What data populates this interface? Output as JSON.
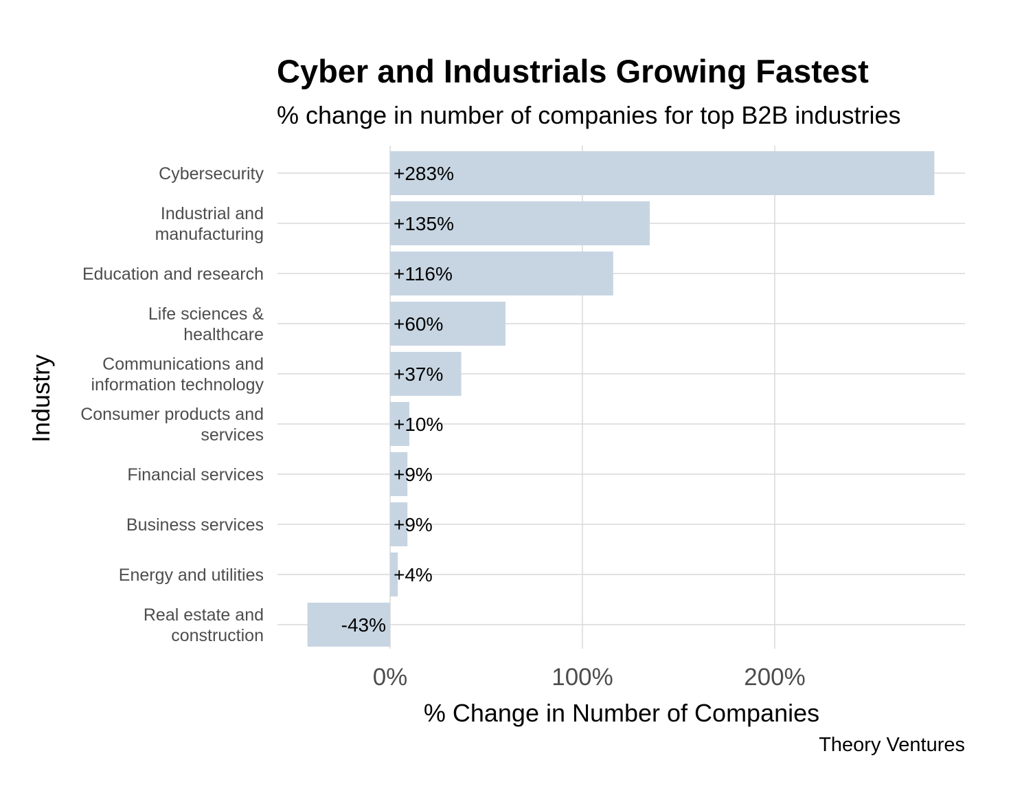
{
  "chart_data": {
    "type": "bar",
    "orientation": "horizontal",
    "title": "Cyber and Industrials Growing Fastest",
    "subtitle": "% change in number of companies for top B2B industries",
    "xlabel": "% Change in Number of Companies",
    "ylabel": "Industry",
    "caption": "Theory Ventures",
    "categories": [
      [
        "Cybersecurity"
      ],
      [
        "Industrial and",
        "manufacturing"
      ],
      [
        "Education and research"
      ],
      [
        "Life sciences &",
        "healthcare"
      ],
      [
        "Communications and",
        "information technology"
      ],
      [
        "Consumer products and",
        "services"
      ],
      [
        "Financial services"
      ],
      [
        "Business services"
      ],
      [
        "Energy and utilities"
      ],
      [
        "Real estate and",
        "construction"
      ]
    ],
    "values": [
      283,
      135,
      116,
      60,
      37,
      10,
      9,
      9,
      4,
      -43
    ],
    "value_labels": [
      "+283%",
      "+135%",
      "+116%",
      "+60%",
      "+37%",
      "+10%",
      "+9%",
      "+9%",
      "+4%",
      "-43%"
    ],
    "x_ticks": [
      0,
      100,
      200
    ],
    "x_tick_labels": [
      "0%",
      "100%",
      "200%"
    ],
    "xlim": [
      -58,
      298
    ],
    "bar_color": "#c7d5e2",
    "grid": true,
    "legend": "none"
  }
}
